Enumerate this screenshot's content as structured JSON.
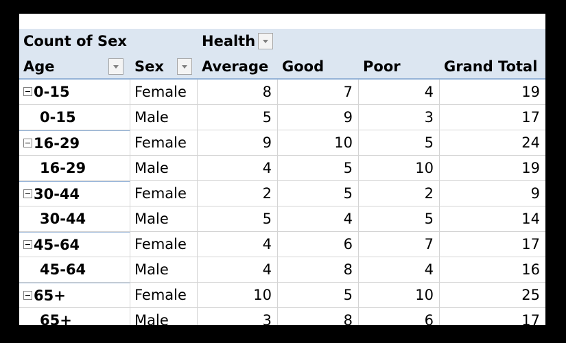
{
  "pivot": {
    "corner_label": "Count of Sex",
    "column_field": "Health",
    "row_fields": [
      "Age",
      "Sex"
    ],
    "columns": [
      "Average",
      "Good",
      "Poor",
      "Grand Total"
    ],
    "rows": [
      {
        "age": "0-15",
        "sex": "Female",
        "values": [
          "8",
          "7",
          "4",
          "19"
        ]
      },
      {
        "age": "0-15",
        "sex": "Male",
        "values": [
          "5",
          "9",
          "3",
          "17"
        ]
      },
      {
        "age": "16-29",
        "sex": "Female",
        "values": [
          "9",
          "10",
          "5",
          "24"
        ]
      },
      {
        "age": "16-29",
        "sex": "Male",
        "values": [
          "4",
          "5",
          "10",
          "19"
        ]
      },
      {
        "age": "30-44",
        "sex": "Female",
        "values": [
          "2",
          "5",
          "2",
          "9"
        ]
      },
      {
        "age": "30-44",
        "sex": "Male",
        "values": [
          "5",
          "4",
          "5",
          "14"
        ]
      },
      {
        "age": "45-64",
        "sex": "Female",
        "values": [
          "4",
          "6",
          "7",
          "17"
        ]
      },
      {
        "age": "45-64",
        "sex": "Male",
        "values": [
          "4",
          "8",
          "4",
          "16"
        ]
      },
      {
        "age": "65+",
        "sex": "Female",
        "values": [
          "10",
          "5",
          "10",
          "25"
        ]
      },
      {
        "age": "65+",
        "sex": "Male",
        "values": [
          "3",
          "8",
          "6",
          "17"
        ]
      }
    ]
  },
  "icons": {
    "collapse": "collapse-minus-icon",
    "filter": "filter-dropdown-icon"
  },
  "colors": {
    "header_fill": "#dce6f1",
    "header_border": "#95b3d7",
    "gridline": "#d4d4d4"
  }
}
